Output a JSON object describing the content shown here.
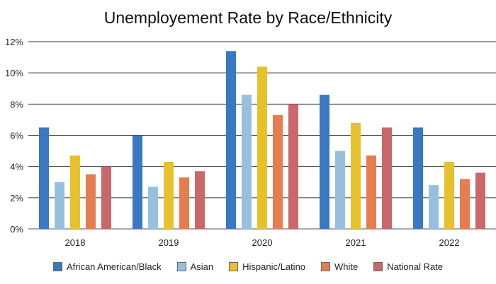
{
  "chart_data": {
    "type": "bar",
    "title": "Unemployement Rate by Race/Ethnicity",
    "categories": [
      "2018",
      "2019",
      "2020",
      "2021",
      "2022"
    ],
    "series": [
      {
        "name": "African American/Black",
        "color": "#3a78c3",
        "values": [
          6.5,
          6.0,
          11.4,
          8.6,
          6.5
        ]
      },
      {
        "name": "Asian",
        "color": "#97c0df",
        "values": [
          3.0,
          2.7,
          8.6,
          5.0,
          2.8
        ]
      },
      {
        "name": "Hispanic/Latino",
        "color": "#e7c12c",
        "values": [
          4.7,
          4.3,
          10.4,
          6.8,
          4.3
        ]
      },
      {
        "name": "White",
        "color": "#e57d4e",
        "values": [
          3.5,
          3.3,
          7.3,
          4.7,
          3.2
        ]
      },
      {
        "name": "National Rate",
        "color": "#c9676a",
        "values": [
          4.0,
          3.7,
          8.0,
          6.5,
          3.6
        ]
      }
    ],
    "ylim": [
      0,
      12
    ],
    "yticks": [
      "0%",
      "2%",
      "4%",
      "6%",
      "8%",
      "10%",
      "12%"
    ],
    "grid": true,
    "legend_position": "bottom"
  }
}
